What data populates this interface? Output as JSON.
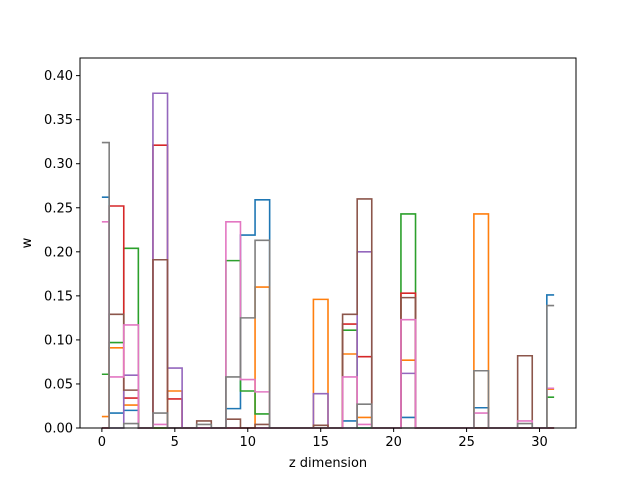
{
  "chart_data": {
    "type": "step",
    "title": "",
    "xlabel": "z dimension",
    "ylabel": "w",
    "xlim": [
      -1.5,
      32.5
    ],
    "ylim": [
      0,
      0.42
    ],
    "xticks": [
      0,
      5,
      10,
      15,
      20,
      25,
      30
    ],
    "yticks": [
      0.0,
      0.05,
      0.1,
      0.15,
      0.2,
      0.25,
      0.3,
      0.35,
      0.4
    ],
    "x": [
      0,
      1,
      2,
      3,
      4,
      5,
      6,
      7,
      8,
      9,
      10,
      11,
      12,
      13,
      14,
      15,
      16,
      17,
      18,
      19,
      20,
      21,
      22,
      23,
      24,
      25,
      26,
      27,
      28,
      29,
      30,
      31
    ],
    "grid": false,
    "legend": "none",
    "series": [
      {
        "color": "#1f77b4",
        "values": [
          0.262,
          0.017,
          0.02,
          0.0,
          0.0,
          0.0,
          0.0,
          0.0,
          0.0,
          0.022,
          0.219,
          0.259,
          0.0,
          0.0,
          0.0,
          0.0,
          0.0,
          0.008,
          0.0,
          0.0,
          0.0,
          0.012,
          0.0,
          0.0,
          0.0,
          0.0,
          0.023,
          0.0,
          0.0,
          0.0,
          0.0,
          0.151
        ]
      },
      {
        "color": "#ff7f0e",
        "values": [
          0.013,
          0.091,
          0.026,
          0.0,
          0.0,
          0.042,
          0.0,
          0.0,
          0.0,
          0.0,
          0.0,
          0.16,
          0.0,
          0.0,
          0.0,
          0.146,
          0.0,
          0.084,
          0.012,
          0.0,
          0.0,
          0.077,
          0.0,
          0.0,
          0.0,
          0.0,
          0.243,
          0.0,
          0.0,
          0.0,
          0.0,
          0.044
        ]
      },
      {
        "color": "#2ca02c",
        "values": [
          0.061,
          0.097,
          0.204,
          0.0,
          0.0,
          0.0,
          0.0,
          0.0,
          0.0,
          0.19,
          0.042,
          0.016,
          0.0,
          0.0,
          0.0,
          0.0,
          0.0,
          0.111,
          0.0,
          0.0,
          0.0,
          0.243,
          0.0,
          0.0,
          0.0,
          0.0,
          0.0,
          0.0,
          0.0,
          0.0,
          0.0,
          0.035
        ]
      },
      {
        "color": "#d62728",
        "values": [
          0.0,
          0.252,
          0.034,
          0.0,
          0.321,
          0.033,
          0.0,
          0.0,
          0.0,
          0.0,
          0.0,
          0.0,
          0.0,
          0.0,
          0.0,
          0.0,
          0.0,
          0.118,
          0.081,
          0.0,
          0.0,
          0.153,
          0.0,
          0.0,
          0.0,
          0.0,
          0.0,
          0.0,
          0.0,
          0.0,
          0.0,
          0.0
        ]
      },
      {
        "color": "#9467bd",
        "values": [
          0.0,
          0.0,
          0.06,
          0.0,
          0.38,
          0.068,
          0.0,
          0.0,
          0.0,
          0.0,
          0.0,
          0.0,
          0.0,
          0.0,
          0.0,
          0.039,
          0.0,
          0.0,
          0.2,
          0.0,
          0.0,
          0.062,
          0.0,
          0.0,
          0.0,
          0.0,
          0.0,
          0.0,
          0.0,
          0.0,
          0.0,
          0.0
        ]
      },
      {
        "color": "#8c564b",
        "values": [
          0.0,
          0.129,
          0.043,
          0.0,
          0.191,
          0.0,
          0.0,
          0.008,
          0.0,
          0.01,
          0.0,
          0.004,
          0.0,
          0.0,
          0.0,
          0.003,
          0.0,
          0.129,
          0.26,
          0.0,
          0.0,
          0.148,
          0.0,
          0.0,
          0.0,
          0.0,
          0.0,
          0.0,
          0.0,
          0.082,
          0.0,
          0.0
        ]
      },
      {
        "color": "#e377c2",
        "values": [
          0.234,
          0.058,
          0.117,
          0.0,
          0.004,
          0.0,
          0.0,
          0.0,
          0.0,
          0.234,
          0.055,
          0.041,
          0.0,
          0.0,
          0.0,
          0.0,
          0.0,
          0.058,
          0.004,
          0.0,
          0.0,
          0.123,
          0.0,
          0.0,
          0.0,
          0.0,
          0.017,
          0.0,
          0.0,
          0.008,
          0.0,
          0.045
        ]
      },
      {
        "color": "#7f7f7f",
        "values": [
          0.324,
          0.0,
          0.005,
          0.0,
          0.017,
          0.0,
          0.0,
          0.004,
          0.0,
          0.058,
          0.125,
          0.213,
          0.0,
          0.0,
          0.0,
          0.0,
          0.0,
          0.0,
          0.027,
          0.0,
          0.0,
          0.0,
          0.0,
          0.0,
          0.0,
          0.0,
          0.065,
          0.0,
          0.0,
          0.005,
          0.0,
          0.139
        ]
      }
    ]
  }
}
